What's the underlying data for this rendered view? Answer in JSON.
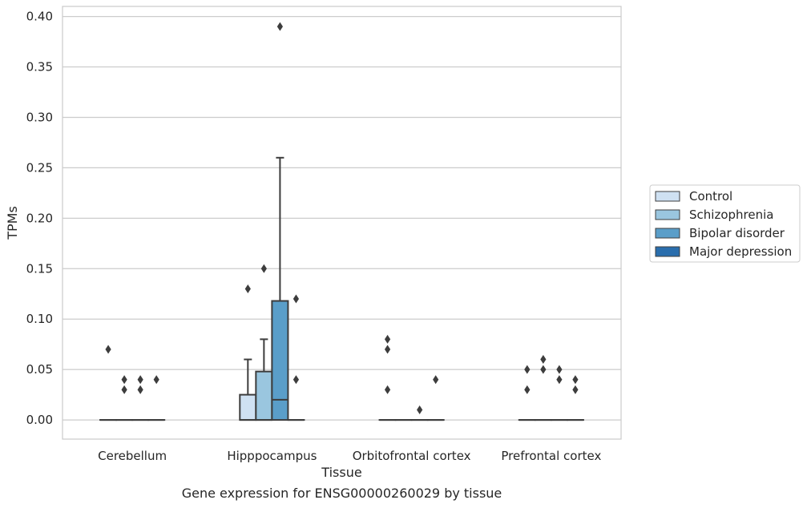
{
  "chart_data": {
    "type": "box",
    "title": "Gene expression for ENSG00000260029 by tissue",
    "xlabel": "Tissue",
    "ylabel": "TPMs",
    "ylim": [
      -0.019,
      0.41
    ],
    "yticks": [
      "0.00",
      "0.05",
      "0.10",
      "0.15",
      "0.20",
      "0.25",
      "0.30",
      "0.35",
      "0.40"
    ],
    "ytick_values": [
      0,
      0.05,
      0.1,
      0.15,
      0.2,
      0.25,
      0.3,
      0.35,
      0.4
    ],
    "grid": true,
    "legend_position": "right",
    "categories": [
      "Cerebellum",
      "Hipppocampus",
      "Orbitofrontal cortex",
      "Prefrontal cortex"
    ],
    "series": [
      {
        "name": "Control",
        "color": "#cfe1f2",
        "boxes": [
          {
            "q1": 0,
            "median": 0,
            "q3": 0,
            "whisker_low": 0,
            "whisker_high": 0,
            "outliers": [
              0.07
            ]
          },
          {
            "q1": 0,
            "median": 0,
            "q3": 0.025,
            "whisker_low": 0,
            "whisker_high": 0.06,
            "outliers": [
              0.13
            ]
          },
          {
            "q1": 0,
            "median": 0,
            "q3": 0,
            "whisker_low": 0,
            "whisker_high": 0,
            "outliers": [
              0.03,
              0.07,
              0.08
            ]
          },
          {
            "q1": 0,
            "median": 0,
            "q3": 0,
            "whisker_low": 0,
            "whisker_high": 0,
            "outliers": [
              0.03,
              0.05
            ]
          }
        ]
      },
      {
        "name": "Schizophrenia",
        "color": "#9ac6df",
        "boxes": [
          {
            "q1": 0,
            "median": 0,
            "q3": 0,
            "whisker_low": 0,
            "whisker_high": 0,
            "outliers": [
              0.03,
              0.04
            ]
          },
          {
            "q1": 0,
            "median": 0,
            "q3": 0.048,
            "whisker_low": 0,
            "whisker_high": 0.08,
            "outliers": [
              0.15
            ]
          },
          {
            "q1": 0,
            "median": 0,
            "q3": 0,
            "whisker_low": 0,
            "whisker_high": 0,
            "outliers": []
          },
          {
            "q1": 0,
            "median": 0,
            "q3": 0,
            "whisker_low": 0,
            "whisker_high": 0,
            "outliers": [
              0.05,
              0.06
            ]
          }
        ]
      },
      {
        "name": "Bipolar disorder",
        "color": "#5a9ec9",
        "boxes": [
          {
            "q1": 0,
            "median": 0,
            "q3": 0,
            "whisker_low": 0,
            "whisker_high": 0,
            "outliers": [
              0.03,
              0.04
            ]
          },
          {
            "q1": 0,
            "median": 0.02,
            "q3": 0.118,
            "whisker_low": 0,
            "whisker_high": 0.26,
            "outliers": [
              0.39
            ]
          },
          {
            "q1": 0,
            "median": 0,
            "q3": 0,
            "whisker_low": 0,
            "whisker_high": 0,
            "outliers": [
              0.01
            ]
          },
          {
            "q1": 0,
            "median": 0,
            "q3": 0,
            "whisker_low": 0,
            "whisker_high": 0,
            "outliers": [
              0.04,
              0.05
            ]
          }
        ]
      },
      {
        "name": "Major depression",
        "color": "#2a6ead",
        "boxes": [
          {
            "q1": 0,
            "median": 0,
            "q3": 0,
            "whisker_low": 0,
            "whisker_high": 0,
            "outliers": [
              0.04
            ]
          },
          {
            "q1": 0,
            "median": 0,
            "q3": 0,
            "whisker_low": 0,
            "whisker_high": 0,
            "outliers": [
              0.04,
              0.12
            ]
          },
          {
            "q1": 0,
            "median": 0,
            "q3": 0,
            "whisker_low": 0,
            "whisker_high": 0,
            "outliers": [
              0.04
            ]
          },
          {
            "q1": 0,
            "median": 0,
            "q3": 0,
            "whisker_low": 0,
            "whisker_high": 0,
            "outliers": [
              0.03,
              0.04
            ]
          }
        ]
      }
    ]
  }
}
